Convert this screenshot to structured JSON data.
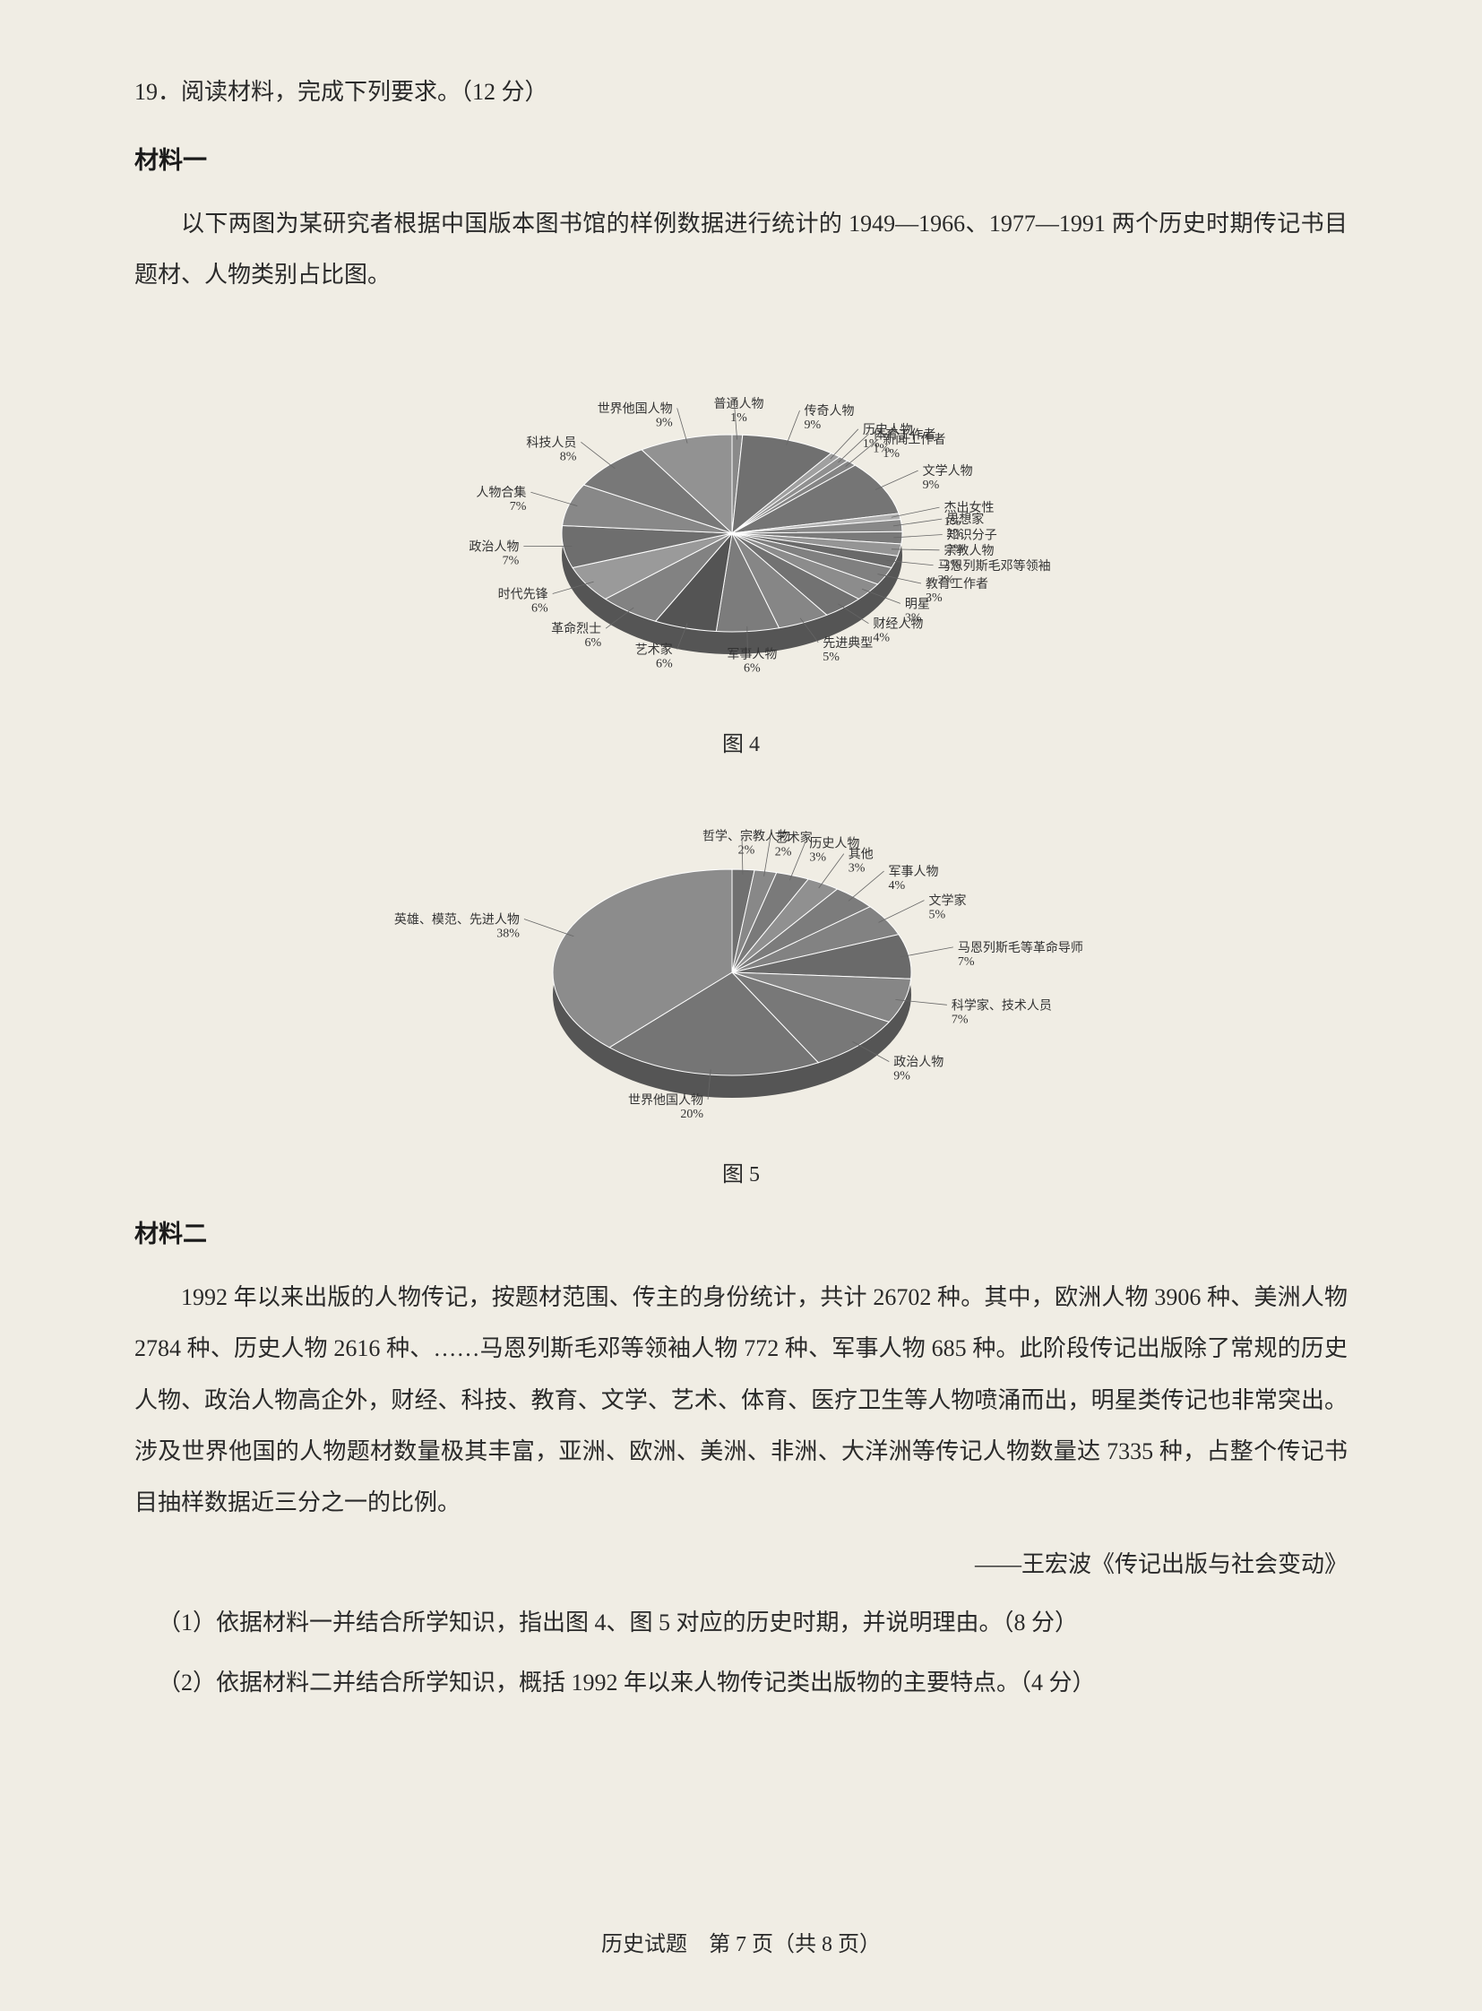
{
  "question": {
    "number": "19．",
    "prompt": "阅读材料，完成下列要求。",
    "points": "（12 分）"
  },
  "material1": {
    "title": "材料一",
    "paragraph": "以下两图为某研究者根据中国版本图书馆的样例数据进行统计的 1949—1966、1977—1991 两个历史时期传记书目题材、人物类别占比图。"
  },
  "chart1": {
    "type": "pie",
    "caption": "图 4",
    "background_color": "#f0ede4",
    "slices": [
      {
        "label": "普通人物",
        "value": 1,
        "color": "#8a8a8a"
      },
      {
        "label": "传奇人物",
        "value": 9,
        "color": "#707070"
      },
      {
        "label": "历史人物",
        "value": 1,
        "color": "#a0a0a0"
      },
      {
        "label": "体育工作者",
        "value": 1,
        "color": "#909090"
      },
      {
        "label": "新闻工作者",
        "value": 1,
        "color": "#858585"
      },
      {
        "label": "文学人物",
        "value": 9,
        "color": "#757575"
      },
      {
        "label": "杰出女性",
        "value": 1,
        "color": "#b0b0b0"
      },
      {
        "label": "思想家",
        "value": 2,
        "color": "#888888"
      },
      {
        "label": "知识分子",
        "value": 2,
        "color": "#7a7a7a"
      },
      {
        "label": "宗教人物",
        "value": 2,
        "color": "#959595"
      },
      {
        "label": "马恩列斯毛邓等领袖",
        "value": 2,
        "color": "#6a6a6a"
      },
      {
        "label": "教育工作者",
        "value": 3,
        "color": "#808080"
      },
      {
        "label": "明星",
        "value": 3,
        "color": "#8c8c8c"
      },
      {
        "label": "财经人物",
        "value": 4,
        "color": "#727272"
      },
      {
        "label": "先进典型",
        "value": 5,
        "color": "#868686"
      },
      {
        "label": "军事人物",
        "value": 6,
        "color": "#7c7c7c"
      },
      {
        "label": "艺术家",
        "value": 6,
        "color": "#545454"
      },
      {
        "label": "革命烈士",
        "value": 6,
        "color": "#828282"
      },
      {
        "label": "时代先锋",
        "value": 6,
        "color": "#9a9a9a"
      },
      {
        "label": "政治人物",
        "value": 7,
        "color": "#6e6e6e"
      },
      {
        "label": "人物合集",
        "value": 7,
        "color": "#888888"
      },
      {
        "label": "科技人员",
        "value": 8,
        "color": "#787878"
      },
      {
        "label": "世界他国人物",
        "value": 9,
        "color": "#929292"
      }
    ]
  },
  "chart2": {
    "type": "pie",
    "caption": "图 5",
    "background_color": "#f0ede4",
    "slices": [
      {
        "label": "哲学、宗教人物",
        "value": 2,
        "color": "#707070"
      },
      {
        "label": "艺术家",
        "value": 2,
        "color": "#888888"
      },
      {
        "label": "历史人物",
        "value": 3,
        "color": "#7a7a7a"
      },
      {
        "label": "其他",
        "value": 3,
        "color": "#909090"
      },
      {
        "label": "军事人物",
        "value": 4,
        "color": "#7c7c7c"
      },
      {
        "label": "文学家",
        "value": 5,
        "color": "#828282"
      },
      {
        "label": "马恩列斯毛等革命导师",
        "value": 7,
        "color": "#6a6a6a"
      },
      {
        "label": "科学家、技术人员",
        "value": 7,
        "color": "#868686"
      },
      {
        "label": "政治人物",
        "value": 9,
        "color": "#787878"
      },
      {
        "label": "世界他国人物",
        "value": 20,
        "color": "#757575"
      },
      {
        "label": "英雄、模范、先进人物",
        "value": 38,
        "color": "#8c8c8c"
      }
    ]
  },
  "material2": {
    "title": "材料二",
    "paragraph": "1992 年以来出版的人物传记，按题材范围、传主的身份统计，共计 26702 种。其中，欧洲人物 3906 种、美洲人物 2784 种、历史人物 2616 种、……马恩列斯毛邓等领袖人物 772 种、军事人物 685 种。此阶段传记出版除了常规的历史人物、政治人物高企外，财经、科技、教育、文学、艺术、体育、医疗卫生等人物喷涌而出，明星类传记也非常突出。涉及世界他国的人物题材数量极其丰富，亚洲、欧洲、美洲、非洲、大洋洲等传记人物数量达 7335 种，占整个传记书目抽样数据近三分之一的比例。",
    "attribution": "——王宏波《传记出版与社会变动》"
  },
  "subquestions": {
    "q1": "（1）依据材料一并结合所学知识，指出图 4、图 5 对应的历史时期，并说明理由。（8 分）",
    "q2": "（2）依据材料二并结合所学知识，概括 1992 年以来人物传记类出版物的主要特点。（4 分）"
  },
  "footer": {
    "text": "历史试题　第 7 页（共 8 页）"
  }
}
